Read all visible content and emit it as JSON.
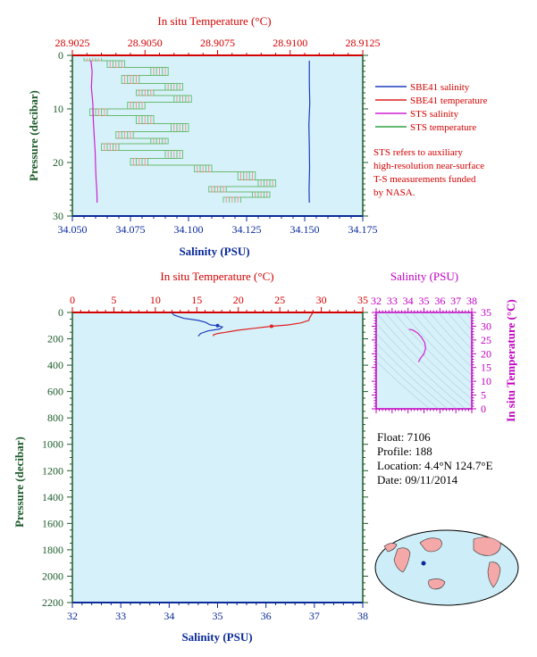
{
  "chart_data": [
    {
      "id": "top",
      "type": "line",
      "top_axis_title": "In situ Temperature (°C)",
      "top_ticks": [
        "28.9025",
        "28.9050",
        "28.9075",
        "28.9100",
        "28.9125"
      ],
      "x_axis_title": "Salinity (PSU)",
      "x_ticks": [
        "34.050",
        "34.075",
        "34.100",
        "34.125",
        "34.150",
        "34.175"
      ],
      "y_axis_title": "Pressure (decibar)",
      "y_ticks": [
        "0",
        "10",
        "20",
        "30"
      ],
      "xlim": [
        34.05,
        34.175
      ],
      "temp_lim": [
        28.9025,
        28.9125
      ],
      "ylim": [
        0,
        30
      ],
      "grid": false,
      "legend": [
        {
          "label": "SBE41 salinity",
          "color": "#1f3dbd"
        },
        {
          "label": "SBE41 temperature",
          "color": "#e02020"
        },
        {
          "label": "STS salinity",
          "color": "#d020d0"
        },
        {
          "label": "STS temperature",
          "color": "#30a040"
        }
      ],
      "note": [
        "STS refers to auxiliary",
        "high-resolution near-surface",
        "T-S measurements funded",
        "by NASA."
      ],
      "series": [
        {
          "name": "SBE41 salinity",
          "x": [
            34.152,
            34.152,
            34.1522,
            34.1518,
            34.152,
            34.1521,
            34.1519,
            34.152
          ],
          "y": [
            1,
            5,
            9,
            13,
            17,
            21,
            25,
            27.5
          ]
        },
        {
          "name": "STS salinity",
          "x": [
            34.058,
            34.0585,
            34.0582,
            34.0588,
            34.059,
            34.0594,
            34.0598,
            34.06,
            34.0602,
            34.0605,
            34.0606,
            34.0606
          ],
          "y": [
            1,
            3,
            6,
            9,
            12,
            15,
            18,
            21,
            23,
            25,
            26.5,
            27.5
          ]
        }
      ],
      "sts_temperature": {
        "name": "STS temperature",
        "p": [
          0.5,
          1.5,
          3,
          4.5,
          6,
          7,
          8,
          9.5,
          10.5,
          12,
          13.5,
          15,
          16,
          17,
          18.5,
          20,
          21,
          22.5,
          24,
          25,
          26,
          27
        ],
        "temp": [
          28.9032,
          28.904,
          28.9055,
          28.9045,
          28.906,
          28.905,
          28.9063,
          28.9047,
          28.9034,
          28.905,
          28.9062,
          28.9043,
          28.9055,
          28.9038,
          28.906,
          28.9048,
          28.907,
          28.9085,
          28.9092,
          28.9075,
          28.909,
          28.908
        ],
        "band": 0.0003
      }
    },
    {
      "id": "bottom",
      "type": "line",
      "top_axis_title": "In situ Temperature (°C)",
      "top_ticks": [
        "0",
        "5",
        "10",
        "15",
        "20",
        "25",
        "30",
        "35"
      ],
      "x_axis_title": "Salinity (PSU)",
      "x_ticks": [
        "32",
        "33",
        "34",
        "35",
        "36",
        "37",
        "38"
      ],
      "y_axis_title": "Pressure (decibar)",
      "y_ticks": [
        "0",
        "200",
        "400",
        "600",
        "800",
        "1000",
        "1200",
        "1400",
        "1600",
        "1800",
        "2000",
        "2200"
      ],
      "xlim": [
        32,
        38
      ],
      "temp_lim": [
        0,
        35
      ],
      "ylim": [
        0,
        2200
      ],
      "grid": false,
      "series": [
        {
          "name": "Salinity",
          "color": "#1f3dbd",
          "x": [
            34.05,
            34.1,
            34.3,
            34.6,
            34.75,
            34.85,
            35.0,
            35.1,
            35.05,
            34.8,
            34.65,
            34.6
          ],
          "y": [
            0,
            20,
            45,
            60,
            75,
            95,
            100,
            110,
            125,
            140,
            160,
            180
          ]
        },
        {
          "name": "Temperature",
          "color": "#e02020",
          "x": [
            29.0,
            28.8,
            28.6,
            28.5,
            27.5,
            26.0,
            24.0,
            22.0,
            20.0,
            18.5,
            17.5,
            17.0,
            17.0
          ],
          "y": [
            0,
            20,
            40,
            60,
            80,
            95,
            105,
            120,
            135,
            150,
            160,
            170,
            180
          ]
        }
      ]
    },
    {
      "id": "ts",
      "type": "line",
      "top_axis_title": "Salinity (PSU)",
      "top_ticks": [
        "32",
        "33",
        "34",
        "35",
        "36",
        "37",
        "38"
      ],
      "y_axis_title": "In situ Temperature (°C)",
      "y_ticks": [
        "0",
        "5",
        "10",
        "15",
        "20",
        "25",
        "30",
        "35"
      ],
      "xlim": [
        32,
        38
      ],
      "ylim": [
        0,
        35
      ],
      "series": [
        {
          "name": "T-S",
          "color": "#d020d0",
          "x": [
            34.05,
            34.3,
            34.6,
            34.85,
            35.05,
            35.1,
            35.0,
            34.8,
            34.65
          ],
          "y": [
            28.9,
            28.6,
            27.5,
            26.0,
            24.0,
            22.0,
            20.0,
            18.5,
            17.0
          ]
        }
      ]
    }
  ],
  "info": {
    "float": "Float: 7106",
    "profile": "Profile: 188",
    "location": "Location: 4.4°N 124.7°E",
    "date": "Date: 09/11/2014"
  },
  "map": {
    "float_lat": 4.4,
    "float_lon": 124.7
  },
  "colors": {
    "plot_bg": "#d6f1f9",
    "temp": "#d40000",
    "sal": "#0a2a9a",
    "pressure": "#1d5b2a",
    "ts": "#c000c0"
  }
}
